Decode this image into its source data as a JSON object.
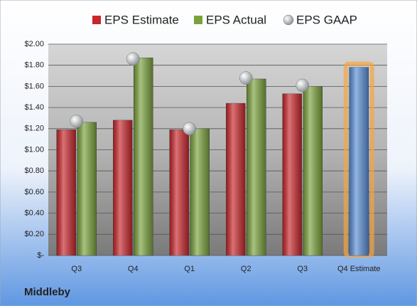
{
  "chart_data": {
    "type": "bar",
    "footer": "Middleby",
    "categories": [
      "Q3",
      "Q4",
      "Q1",
      "Q2",
      "Q3",
      "Q4 Estimate"
    ],
    "series": [
      {
        "name": "EPS Estimate",
        "color": "#c8262b",
        "values": [
          1.19,
          1.28,
          1.19,
          1.44,
          1.53,
          1.78
        ]
      },
      {
        "name": "EPS Actual",
        "color": "#7aa23c",
        "values": [
          1.26,
          1.87,
          1.2,
          1.67,
          1.6,
          null
        ]
      },
      {
        "name": "EPS GAAP",
        "color": "#b8bcc0",
        "marker": "circle",
        "values": [
          1.27,
          1.86,
          1.2,
          1.68,
          1.61,
          null
        ]
      }
    ],
    "forecast_color": "#5b8fd6",
    "forecast_glow": "#f5a542",
    "ylim": [
      0,
      2
    ],
    "yticks": [
      {
        "value": 0,
        "label": "$-"
      },
      {
        "value": 0.2,
        "label": "$0.20"
      },
      {
        "value": 0.4,
        "label": "$0.40"
      },
      {
        "value": 0.6,
        "label": "$0.60"
      },
      {
        "value": 0.8,
        "label": "$0.80"
      },
      {
        "value": 1.0,
        "label": "$1.00"
      },
      {
        "value": 1.2,
        "label": "$1.20"
      },
      {
        "value": 1.4,
        "label": "$1.40"
      },
      {
        "value": 1.6,
        "label": "$1.60"
      },
      {
        "value": 1.8,
        "label": "$1.80"
      },
      {
        "value": 2.0,
        "label": "$2.00"
      }
    ],
    "grid": true
  }
}
